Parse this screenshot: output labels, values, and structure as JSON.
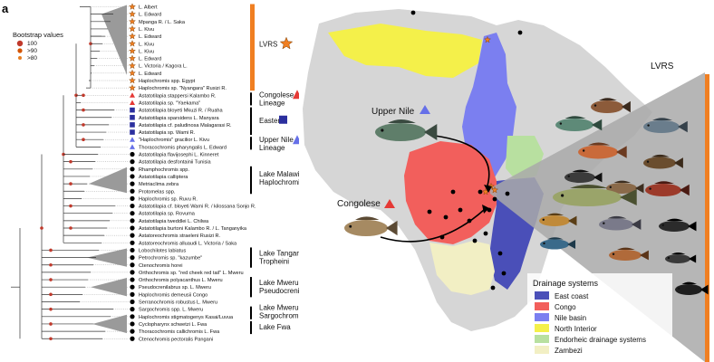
{
  "panel_a": {
    "letter": "a",
    "bootstrap_legend": {
      "title": "Bootstrap values",
      "items": [
        {
          "label": "100",
          "color": "#c0392b"
        },
        {
          "label": ">90",
          "color": "#d35400"
        },
        {
          "label": ">80",
          "color": "#e67e22"
        }
      ]
    },
    "taxa": [
      {
        "name": "L. Albert",
        "marker": "star"
      },
      {
        "name": "L. Edward",
        "marker": "star"
      },
      {
        "name": "Mpanga R. / L. Saka",
        "marker": "star"
      },
      {
        "name": "L. Kivu",
        "marker": "star"
      },
      {
        "name": "L. Edward",
        "marker": "star"
      },
      {
        "name": "L. Kivu",
        "marker": "star"
      },
      {
        "name": "L. Kivu",
        "marker": "star"
      },
      {
        "name": "L. Edward",
        "marker": "star"
      },
      {
        "name": "L. Victoria / Kagora L.",
        "marker": "star"
      },
      {
        "name": "L. Edward",
        "marker": "star"
      },
      {
        "name": "Haplochromis spp. Egypt",
        "marker": "star"
      },
      {
        "name": "Haplochromis sp. \"Nyangara\" Rusizi R.",
        "marker": "star"
      },
      {
        "name": "Astatotilapia stappersi Kalambo R.",
        "marker": "triangle-red"
      },
      {
        "name": "Astatotilapia sp. \"Yaekama\"",
        "marker": "triangle-red"
      },
      {
        "name": "Astatotilapia bloyeti Mkuzi R. / Ruaha",
        "marker": "square-blue"
      },
      {
        "name": "Astatotilapia sparsidens L. Manyara",
        "marker": "square-blue"
      },
      {
        "name": "Astatotilapia cf. paludinosa Malagarasi R.",
        "marker": "square-blue"
      },
      {
        "name": "Astatotilapia sp. Wami R.",
        "marker": "square-blue"
      },
      {
        "name": "\"Haplochromis\" gracilior L. Kivu",
        "marker": "triangle-blue"
      },
      {
        "name": "Thoracochromis pharyngalis L. Edward",
        "marker": "triangle-blue"
      },
      {
        "name": "Astatotilapia flavijosephi L. Kinneret",
        "marker": "dot"
      },
      {
        "name": "Astatotilapia desfontainii Tunisia",
        "marker": "dot"
      },
      {
        "name": "Rhamphochromis spp.",
        "marker": "dot"
      },
      {
        "name": "Astatotilapia calliptera",
        "marker": "dot"
      },
      {
        "name": "Metriaclima zebra",
        "marker": "dot"
      },
      {
        "name": "Protomelas spp.",
        "marker": "dot"
      },
      {
        "name": "Haplochromis sp. Ruvu R.",
        "marker": "dot"
      },
      {
        "name": "Astatotilapia cf. bloyeti Wami R. / kilossana Sonjo R.",
        "marker": "dot"
      },
      {
        "name": "Astatotilapia sp. Rovuma",
        "marker": "dot"
      },
      {
        "name": "Astatotilapia tweddlei L. Chilwa",
        "marker": "dot"
      },
      {
        "name": "Astatotilapia burtoni Kalambo R. / L. Tanganyika",
        "marker": "dot"
      },
      {
        "name": "Astatoreochromis straeleni Rusizi R.",
        "marker": "dot"
      },
      {
        "name": "Astatoreochromis alluaudi L. Victoria / Saka",
        "marker": "dot"
      },
      {
        "name": "Lobochilotes labiatus",
        "marker": "dot"
      },
      {
        "name": "Petrochromis sp. \"kazumbe\"",
        "marker": "dot"
      },
      {
        "name": "Ctenochromis horei",
        "marker": "dot"
      },
      {
        "name": "Orthochromis sp. \"red cheek red tail\" L. Mweru",
        "marker": "dot"
      },
      {
        "name": "Orthochromis polyacanthus L. Mweru",
        "marker": "dot"
      },
      {
        "name": "Pseudocrenilabrus sp. L. Mweru",
        "marker": "dot"
      },
      {
        "name": "Haplochromis demeusii Congo",
        "marker": "dot"
      },
      {
        "name": "Serranochromis robustus L. Mweru",
        "marker": "dot"
      },
      {
        "name": "Sargochromis spp. L. Mweru",
        "marker": "dot"
      },
      {
        "name": "Haplochromis stigmatogenys Kasai/Luvua",
        "marker": "dot"
      },
      {
        "name": "Cyclopharynx schwetzi L. Fwa",
        "marker": "dot"
      },
      {
        "name": "Thoracochromis callichromis L. Fwa",
        "marker": "dot"
      },
      {
        "name": "Ctenochromis pectoralis Pangani",
        "marker": "dot"
      }
    ],
    "groups": [
      {
        "line1": "LVRS",
        "line2": ""
      },
      {
        "line1": "Congolese",
        "line2": "Lineage"
      },
      {
        "line1": "Eastern",
        "line2": ""
      },
      {
        "line1": "Upper Nile",
        "line2": "Lineage"
      },
      {
        "line1": "Lake Malawi",
        "line2": "Haplochromines"
      },
      {
        "line1": "Lake Tanganyika",
        "line2": "Tropheini"
      },
      {
        "line1": "Lake Mweru",
        "line2": "Pseudocrenilabrus"
      },
      {
        "line1": "Lake Mweru",
        "line2": "Sargochromis"
      },
      {
        "line1": "Lake Fwa",
        "line2": ""
      }
    ]
  },
  "panel_b": {
    "letter": "b",
    "labels": {
      "upper_nile": "Upper Nile",
      "congolese": "Congolese",
      "lvrs": "LVRS"
    },
    "drainage_legend": {
      "title": "Drainage systems",
      "items": [
        {
          "label": "East coast",
          "color": "#4a4fb8"
        },
        {
          "label": "Congo",
          "color": "#f25f5c"
        },
        {
          "label": "Nile basin",
          "color": "#7b7ff0"
        },
        {
          "label": "North Interior",
          "color": "#f4f04a"
        },
        {
          "label": "Endorheic drainage systems",
          "color": "#b8e0a0"
        },
        {
          "label": "Zambezi",
          "color": "#f2efc4"
        }
      ]
    }
  },
  "colors": {
    "lvrs_bar": "#f07f22",
    "congolese_tri": "#e53935",
    "eastern_sq": "#2b2f9e",
    "upper_nile_tri": "#6670e8",
    "group_bar": "#000000",
    "land": "#d8d8d8"
  }
}
